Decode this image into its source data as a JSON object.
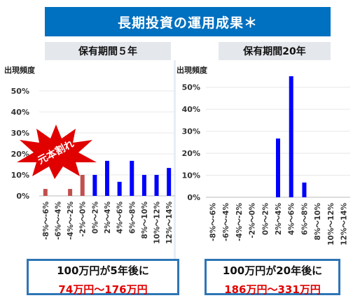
{
  "title": "長期投資の運用成果＊",
  "colors": {
    "title_bg": "#0070c0",
    "loss_bar": "#c0504d",
    "gain_bar": "#0000ff",
    "burst": "#e00000",
    "result_red": "#e00000",
    "box_border": "#2e75b6"
  },
  "burst_label": "元本割れ",
  "chart_data": [
    {
      "type": "bar",
      "subtitle": "保有期間５年",
      "ylabel": "出現頻度",
      "ylim": [
        0,
        50
      ],
      "yticks": [
        "0%",
        "10%",
        "20%",
        "30%",
        "40%",
        "50%"
      ],
      "categories": [
        "-8%～-6%",
        "-6%～-4%",
        "-4%～-2%",
        "-2%～0%",
        "0%～2%",
        "2%～4%",
        "4%～6%",
        "6%～8%",
        "8%～10%",
        "10%～12%",
        "12%～14%"
      ],
      "values": [
        3.3,
        0,
        3.3,
        10,
        10,
        16.7,
        6.7,
        16.7,
        10,
        10,
        13.3
      ],
      "highlight": "元本割れ"
    },
    {
      "type": "bar",
      "subtitle": "保有期間20年",
      "ylabel": "出現頻度",
      "ylim": [
        0,
        55
      ],
      "yticks": [
        "0%",
        "10%",
        "20%",
        "30%",
        "40%",
        "50%"
      ],
      "categories": [
        "-8%～-6%",
        "-6%～-4%",
        "-4%～-2%",
        "-2%～0%",
        "0%～2%",
        "2%～4%",
        "4%～6%",
        "6%～8%",
        "8%～10%",
        "10%～12%",
        "12%～14%"
      ],
      "values": [
        0,
        0,
        0,
        0,
        0,
        26.7,
        55,
        6.7,
        0,
        0,
        0
      ]
    }
  ],
  "result_5y": {
    "line1": "100万円が5年後に",
    "line2": "74万円～176万円"
  },
  "result_20y": {
    "line1": "100万円が20年後に",
    "line2": "186万円～331万円"
  }
}
